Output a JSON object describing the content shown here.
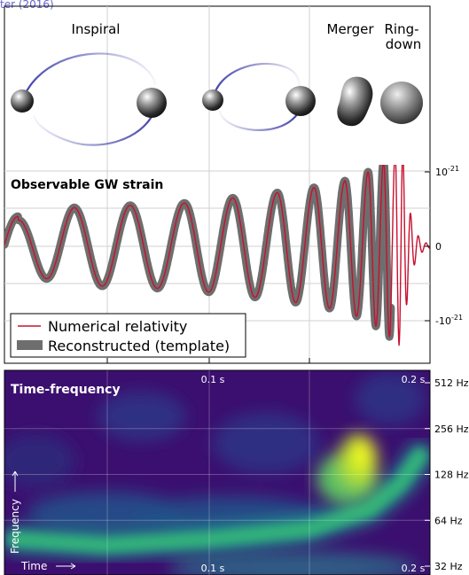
{
  "header_fragment": "ter (2016)",
  "stages": {
    "inspiral": "Inspiral",
    "merger": "Merger",
    "ringdown_line1": "Ring-",
    "ringdown_line2": "down"
  },
  "colors": {
    "waveform_nr": "#c8102e",
    "waveform_template": "#6e6e6e",
    "orbit": "#2a2aa0",
    "grid": "#d0d0d0",
    "spectrogram_low": "#3b0f6f",
    "spectrogram_high": "#f0f921"
  },
  "chart_data": [
    {
      "type": "line",
      "title": "Observable GW strain",
      "y_tick_labels": [
        "10^-21",
        "0",
        "-10^-21"
      ],
      "y_ticks": [
        1,
        0,
        -1
      ],
      "ylim": [
        -1.45,
        1.55
      ],
      "xlim": [
        0.0,
        0.22
      ],
      "grid": true,
      "legend_position": "bottom-left",
      "series": [
        {
          "name": "Numerical relativity",
          "style": "thin red line",
          "description": "chirp: oscillation with slowly increasing frequency and amplitude, peak near t=0.205 s, then ringdown"
        },
        {
          "name": "Reconstructed (template)",
          "style": "thick grey band"
        }
      ],
      "chirp_peaks": [
        {
          "t": 0.007,
          "y": 0.35
        },
        {
          "t": 0.036,
          "y": 0.52
        },
        {
          "t": 0.065,
          "y": 0.55
        },
        {
          "t": 0.093,
          "y": 0.58
        },
        {
          "t": 0.118,
          "y": 0.65
        },
        {
          "t": 0.141,
          "y": 0.72
        },
        {
          "t": 0.16,
          "y": 0.79
        },
        {
          "t": 0.176,
          "y": 0.88
        },
        {
          "t": 0.188,
          "y": 1.0
        },
        {
          "t": 0.196,
          "y": 1.15
        },
        {
          "t": 0.202,
          "y": 1.28
        },
        {
          "t": 0.206,
          "y": 1.38
        }
      ]
    },
    {
      "type": "heatmap",
      "title": "Time-frequency",
      "xlabel": "Time",
      "ylabel": "Frequency",
      "x_tick_labels": [
        "0.1 s",
        "0.2 s"
      ],
      "x_ticks": [
        0.1,
        0.2
      ],
      "y_tick_labels": [
        "512 Hz",
        "256 Hz",
        "128 Hz",
        "64 Hz",
        "32 Hz"
      ],
      "y_ticks": [
        512,
        256,
        128,
        64,
        32
      ],
      "y_scale": "log2",
      "colormap": "viridis-like",
      "ridge": [
        {
          "t": 0.005,
          "f": 48
        },
        {
          "t": 0.05,
          "f": 44
        },
        {
          "t": 0.1,
          "f": 48
        },
        {
          "t": 0.15,
          "f": 56
        },
        {
          "t": 0.18,
          "f": 75
        },
        {
          "t": 0.195,
          "f": 110
        },
        {
          "t": 0.205,
          "f": 170
        }
      ]
    }
  ]
}
